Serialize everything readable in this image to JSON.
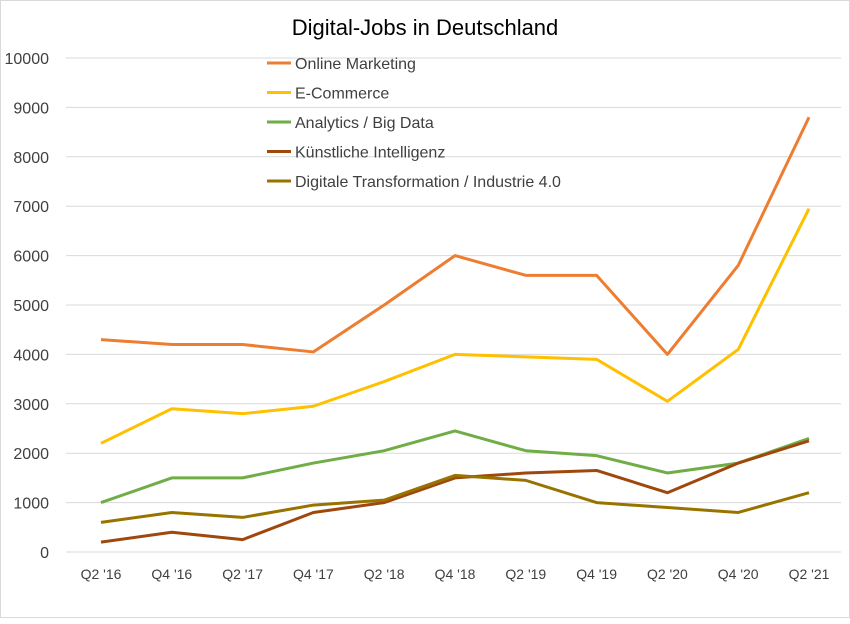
{
  "chart_data": {
    "type": "line",
    "title": "Digital-Jobs in Deutschland",
    "xlabel": "",
    "ylabel": "",
    "ylim": [
      0,
      10000
    ],
    "yticks": [
      0,
      1000,
      2000,
      3000,
      4000,
      5000,
      6000,
      7000,
      8000,
      9000,
      10000
    ],
    "grid": true,
    "legend_position": "top-center",
    "categories": [
      "Q2 '16",
      "Q4 '16",
      "Q2 '17",
      "Q4 '17",
      "Q2 '18",
      "Q4 '18",
      "Q2 '19",
      "Q4 '19",
      "Q2 '20",
      "Q4 '20",
      "Q2 '21"
    ],
    "series": [
      {
        "name": "Online Marketing",
        "color": "#ED7D31",
        "values": [
          4300,
          4200,
          4200,
          4050,
          5000,
          6000,
          5600,
          5600,
          4000,
          5800,
          8800
        ]
      },
      {
        "name": "E-Commerce",
        "color": "#FFC000",
        "values": [
          2200,
          2900,
          2800,
          2950,
          3450,
          4000,
          3950,
          3900,
          3050,
          4100,
          6950
        ]
      },
      {
        "name": "Analytics / Big Data",
        "color": "#70AD47",
        "values": [
          1000,
          1500,
          1500,
          1800,
          2050,
          2450,
          2050,
          1950,
          1600,
          1800,
          2300
        ]
      },
      {
        "name": "Künstliche Intelligenz",
        "color": "#9E480E",
        "values": [
          200,
          400,
          250,
          800,
          1000,
          1500,
          1600,
          1650,
          1200,
          1800,
          2250
        ]
      },
      {
        "name": "Digitale Transformation / Industrie 4.0",
        "color": "#997300",
        "values": [
          600,
          800,
          700,
          950,
          1050,
          1550,
          1450,
          1000,
          900,
          800,
          1200
        ]
      }
    ]
  }
}
